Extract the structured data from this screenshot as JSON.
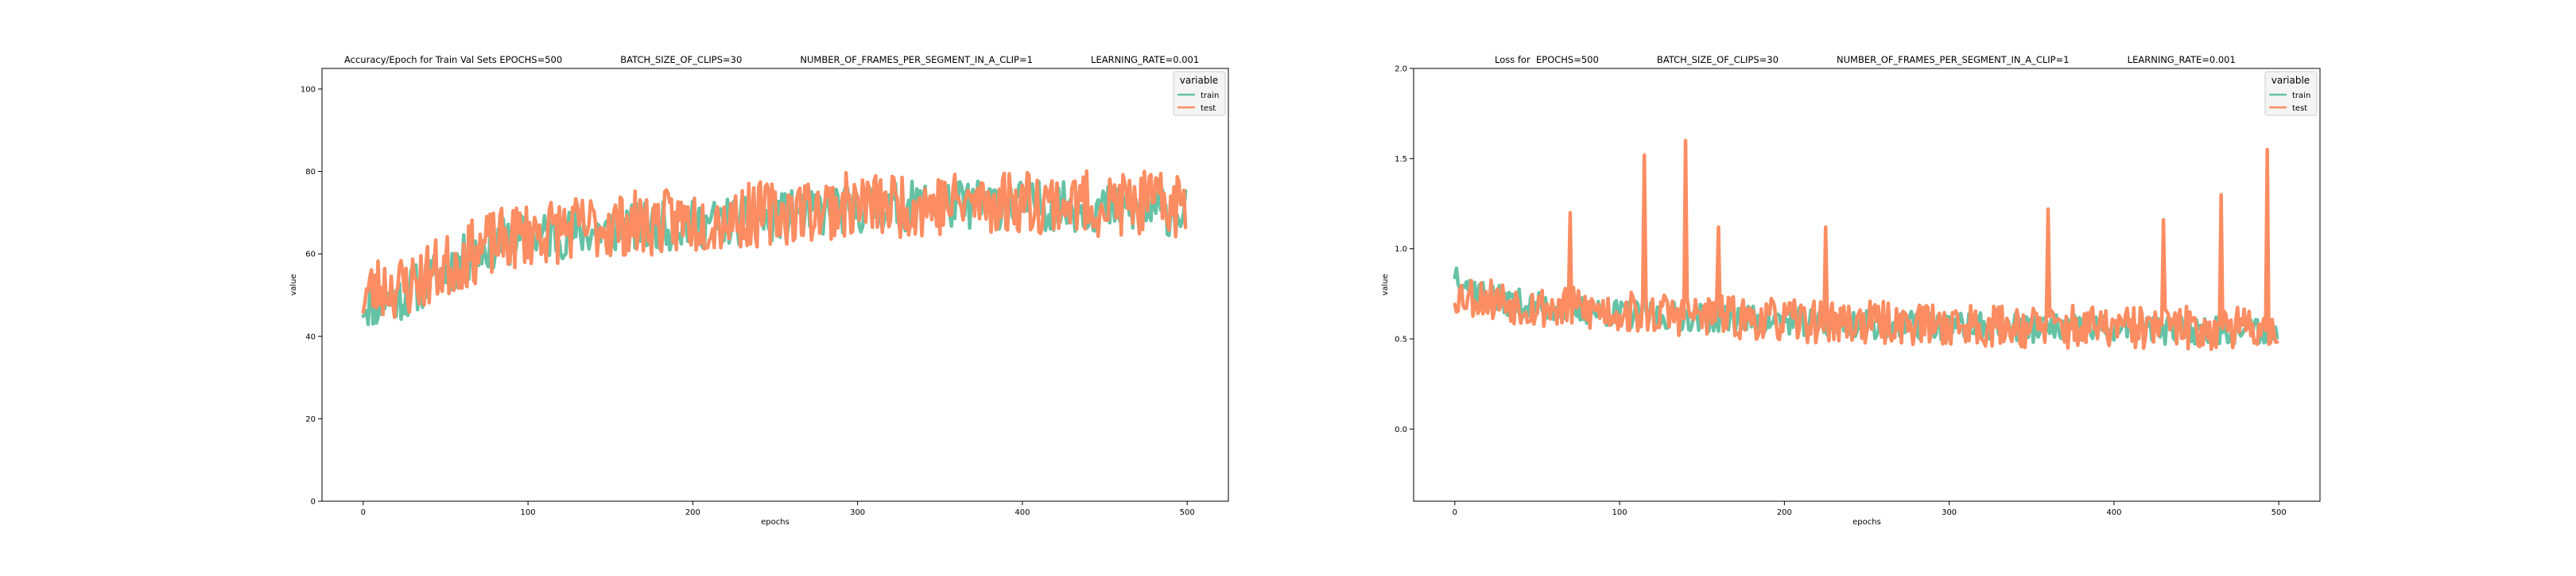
{
  "chart_data": [
    {
      "type": "line",
      "title": "Accuracy/Epoch for Train Val Sets EPOCHS=500                    BATCH_SIZE_OF_CLIPS=30                    NUMBER_OF_FRAMES_PER_SEGMENT_IN_A_CLIP=1                    LEARNING_RATE=0.001",
      "xlabel": "epochs",
      "ylabel": "value",
      "xlim": [
        -25,
        525
      ],
      "ylim": [
        0,
        105
      ],
      "xticks": [
        "0",
        "100",
        "200",
        "300",
        "400",
        "500"
      ],
      "yticks": [
        "0",
        "20",
        "40",
        "60",
        "80",
        "100"
      ],
      "grid": false,
      "legend": {
        "title": "variable",
        "placement": "top-right",
        "entries": [
          "train",
          "test"
        ]
      },
      "series": [
        {
          "name": "train",
          "color": "#66c2a5",
          "keypoints": [
            [
              0,
              48
            ],
            [
              10,
              48
            ],
            [
              25,
              50
            ],
            [
              50,
              56
            ],
            [
              75,
              62
            ],
            [
              100,
              64
            ],
            [
              150,
              66
            ],
            [
              200,
              67
            ],
            [
              250,
              69
            ],
            [
              300,
              71
            ],
            [
              350,
              72
            ],
            [
              400,
              72
            ],
            [
              450,
              71
            ],
            [
              499,
              70
            ]
          ],
          "noise_amplitude": 6,
          "seed": 11
        },
        {
          "name": "test",
          "color": "#fc8d62",
          "keypoints": [
            [
              0,
              50
            ],
            [
              10,
              52
            ],
            [
              25,
              52
            ],
            [
              50,
              57
            ],
            [
              75,
              62
            ],
            [
              100,
              65
            ],
            [
              150,
              67
            ],
            [
              200,
              68
            ],
            [
              250,
              70
            ],
            [
              300,
              72
            ],
            [
              350,
              72
            ],
            [
              400,
              73
            ],
            [
              450,
              72
            ],
            [
              499,
              72
            ]
          ],
          "noise_amplitude": 8,
          "seed": 23
        }
      ]
    },
    {
      "type": "line",
      "title": "Loss for  EPOCHS=500                    BATCH_SIZE_OF_CLIPS=30                    NUMBER_OF_FRAMES_PER_SEGMENT_IN_A_CLIP=1                    LEARNING_RATE=0.001",
      "xlabel": "epochs",
      "ylabel": "value",
      "xlim": [
        -25,
        525
      ],
      "ylim": [
        -0.4,
        2.0
      ],
      "xticks": [
        "0",
        "100",
        "200",
        "300",
        "400",
        "500"
      ],
      "yticks": [
        "0.0",
        "0.5",
        "1.0",
        "1.5",
        "2.0"
      ],
      "grid": false,
      "legend": {
        "title": "variable",
        "placement": "top-right",
        "entries": [
          "train",
          "test"
        ]
      },
      "series": [
        {
          "name": "train",
          "color": "#66c2a5",
          "keypoints": [
            [
              0,
              0.88
            ],
            [
              10,
              0.78
            ],
            [
              25,
              0.72
            ],
            [
              50,
              0.68
            ],
            [
              100,
              0.64
            ],
            [
              150,
              0.62
            ],
            [
              200,
              0.6
            ],
            [
              250,
              0.58
            ],
            [
              300,
              0.57
            ],
            [
              350,
              0.56
            ],
            [
              400,
              0.55
            ],
            [
              450,
              0.55
            ],
            [
              499,
              0.55
            ]
          ],
          "noise_amplitude": 0.08,
          "seed": 37
        },
        {
          "name": "test",
          "color": "#fc8d62",
          "keypoints": [
            [
              0,
              0.75
            ],
            [
              10,
              0.74
            ],
            [
              25,
              0.72
            ],
            [
              50,
              0.68
            ],
            [
              100,
              0.65
            ],
            [
              150,
              0.63
            ],
            [
              200,
              0.6
            ],
            [
              250,
              0.59
            ],
            [
              300,
              0.58
            ],
            [
              350,
              0.57
            ],
            [
              400,
              0.56
            ],
            [
              450,
              0.56
            ],
            [
              499,
              0.56
            ]
          ],
          "noise_amplitude": 0.12,
          "seed": 53,
          "spikes": [
            [
              70,
              1.2
            ],
            [
              115,
              1.52
            ],
            [
              140,
              1.6
            ],
            [
              160,
              1.12
            ],
            [
              225,
              1.12
            ],
            [
              360,
              1.22
            ],
            [
              430,
              1.16
            ],
            [
              465,
              1.3
            ],
            [
              493,
              1.55
            ]
          ]
        }
      ]
    }
  ]
}
